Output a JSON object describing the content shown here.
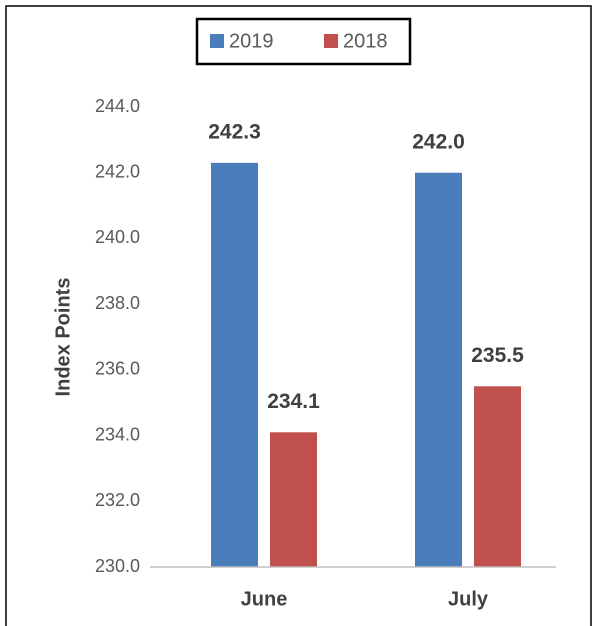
{
  "chart_data": {
    "type": "bar",
    "y_label": "Index Points",
    "categories": [
      "June",
      "July"
    ],
    "series": [
      {
        "name": "2019",
        "color": "#4a7ebb",
        "values": [
          242.3,
          242.0
        ],
        "value_labels": [
          "242.3",
          "242.0"
        ]
      },
      {
        "name": "2018",
        "color": "#c0504d",
        "values": [
          234.1,
          235.5
        ],
        "value_labels": [
          "234.1",
          "235.5"
        ]
      }
    ],
    "ylim": [
      230,
      244
    ],
    "yticks": [
      {
        "value": 230,
        "label": "230.0"
      },
      {
        "value": 232,
        "label": "232.0"
      },
      {
        "value": 234,
        "label": "234.0"
      },
      {
        "value": 236,
        "label": "236.0"
      },
      {
        "value": 238,
        "label": "238.0"
      },
      {
        "value": 240,
        "label": "240.0"
      },
      {
        "value": 242,
        "label": "242.0"
      },
      {
        "value": 244,
        "label": "244.0"
      }
    ],
    "legend": "top",
    "grid": false
  }
}
